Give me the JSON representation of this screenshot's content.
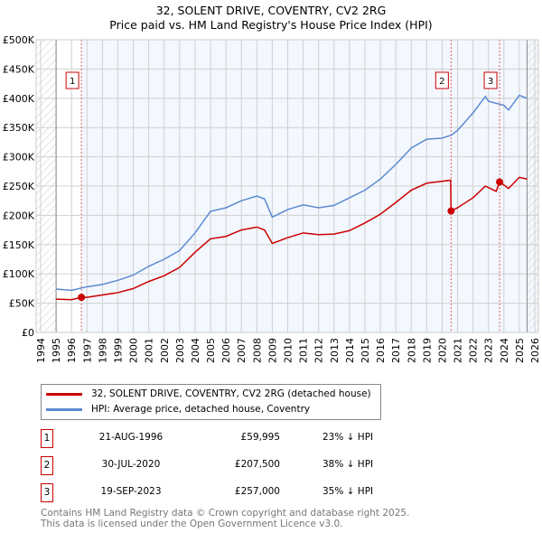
{
  "title": "32, SOLENT DRIVE, COVENTRY, CV2 2RG",
  "subtitle": "Price paid vs. HM Land Registry's House Price Index (HPI)",
  "chart_data": {
    "type": "line",
    "title": "32, SOLENT DRIVE, COVENTRY, CV2 2RG",
    "subtitle": "Price paid vs. HM Land Registry's House Price Index (HPI)",
    "xlim": [
      1994,
      2026
    ],
    "ylim": [
      0,
      500000
    ],
    "x_ticks": [
      "1994",
      "1995",
      "1996",
      "1997",
      "1998",
      "1999",
      "2000",
      "2001",
      "2002",
      "2003",
      "2004",
      "2005",
      "2006",
      "2007",
      "2008",
      "2009",
      "2010",
      "2011",
      "2012",
      "2013",
      "2014",
      "2015",
      "2016",
      "2017",
      "2018",
      "2019",
      "2020",
      "2021",
      "2022",
      "2023",
      "2024",
      "2025",
      "2026"
    ],
    "y_ticks": [
      {
        "v": 0,
        "label": "£0"
      },
      {
        "v": 50000,
        "label": "£50K"
      },
      {
        "v": 100000,
        "label": "£100K"
      },
      {
        "v": 150000,
        "label": "£150K"
      },
      {
        "v": 200000,
        "label": "£200K"
      },
      {
        "v": 250000,
        "label": "£250K"
      },
      {
        "v": 300000,
        "label": "£300K"
      },
      {
        "v": 350000,
        "label": "£350K"
      },
      {
        "v": 400000,
        "label": "£400K"
      },
      {
        "v": 450000,
        "label": "£450K"
      },
      {
        "v": 500000,
        "label": "£500K"
      }
    ],
    "grid": true,
    "data_range": [
      1995,
      2025.5
    ],
    "series": [
      {
        "name": "32, SOLENT DRIVE, COVENTRY, CV2 2RG (detached house)",
        "color": "#cc0000",
        "x": [
          1995,
          1996,
          1996.64,
          1997,
          1998,
          1999,
          2000,
          2001,
          2002,
          2003,
          2004,
          2005,
          2006,
          2007,
          2008,
          2008.5,
          2009,
          2010,
          2011,
          2012,
          2013,
          2014,
          2015,
          2016,
          2017,
          2018,
          2019,
          2020.55,
          2020.58,
          2021,
          2022,
          2022.8,
          2023.5,
          2023.72,
          2024,
          2024.3,
          2025,
          2025.5
        ],
        "y": [
          57000,
          56000,
          59995,
          60000,
          64000,
          68000,
          75000,
          87000,
          97000,
          111000,
          137000,
          160000,
          164000,
          175000,
          180000,
          175000,
          152000,
          162000,
          170000,
          167000,
          168000,
          174000,
          187000,
          202000,
          222000,
          243000,
          255000,
          260000,
          207500,
          213000,
          230000,
          250000,
          241000,
          257000,
          252000,
          246000,
          265000,
          262000
        ]
      },
      {
        "name": "HPI: Average price, detached house, Coventry",
        "color": "#5b8bd0",
        "x": [
          1995,
          1996,
          1997,
          1998,
          1999,
          2000,
          2001,
          2002,
          2003,
          2004,
          2005,
          2006,
          2007,
          2008,
          2008.5,
          2009,
          2010,
          2011,
          2012,
          2013,
          2014,
          2015,
          2016,
          2017,
          2018,
          2019,
          2020,
          2020.6,
          2021,
          2022,
          2022.8,
          2023,
          2024,
          2024.3,
          2025,
          2025.5
        ],
        "y": [
          74000,
          72000,
          78000,
          82000,
          89000,
          98000,
          113000,
          125000,
          140000,
          170000,
          207000,
          213000,
          225000,
          233000,
          228000,
          197000,
          210000,
          218000,
          213000,
          217000,
          230000,
          243000,
          262000,
          287000,
          315000,
          330000,
          332000,
          337000,
          345000,
          375000,
          403000,
          395000,
          388000,
          380000,
          405000,
          400000
        ]
      }
    ],
    "annotations": [
      {
        "label": "1",
        "x": 1996.64,
        "y": 59995
      },
      {
        "label": "2",
        "x": 2020.58,
        "y": 207500
      },
      {
        "label": "3",
        "x": 2023.72,
        "y": 257000
      }
    ],
    "legend_placement": "bottom"
  },
  "legend": [
    "32, SOLENT DRIVE, COVENTRY, CV2 2RG (detached house)",
    "HPI: Average price, detached house, Coventry"
  ],
  "sales": [
    {
      "num": "1",
      "date": "21-AUG-1996",
      "price": "£59,995",
      "hpi": "23% ↓ HPI"
    },
    {
      "num": "2",
      "date": "30-JUL-2020",
      "price": "£207,500",
      "hpi": "38% ↓ HPI"
    },
    {
      "num": "3",
      "date": "19-SEP-2023",
      "price": "£257,000",
      "hpi": "35% ↓ HPI"
    }
  ],
  "footer": [
    "Contains HM Land Registry data © Crown copyright and database right 2025.",
    "This data is licensed under the Open Government Licence v3.0."
  ]
}
